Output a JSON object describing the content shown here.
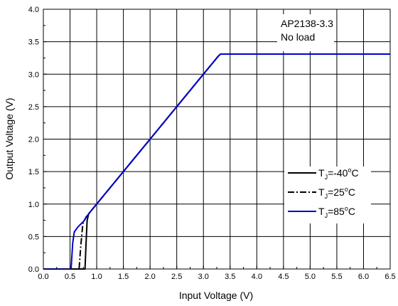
{
  "chart_data": {
    "type": "line",
    "xlabel": "Input Voltage (V)",
    "ylabel": "Output Voltage (V)",
    "xlim": [
      0.0,
      6.5
    ],
    "ylim": [
      0.0,
      4.0
    ],
    "x_ticks": [
      "0.0",
      "0.5",
      "1.0",
      "1.5",
      "2.0",
      "2.5",
      "3.0",
      "3.5",
      "4.0",
      "4.5",
      "5.0",
      "5.5",
      "6.0",
      "6.5"
    ],
    "y_ticks": [
      "0.0",
      "0.5",
      "1.0",
      "1.5",
      "2.0",
      "2.5",
      "3.0",
      "3.5",
      "4.0"
    ],
    "grid": true,
    "annotation": [
      "AP2138-3.3",
      "No load"
    ],
    "legend_position": "right",
    "series": [
      {
        "name": "T_J=-40°C",
        "legend": {
          "prefix": "T",
          "sub": "J",
          "middle": "=-40",
          "sup": "o",
          "suffix": "C"
        },
        "color": "#000000",
        "style": "solid",
        "x": [
          0.0,
          0.78,
          0.8,
          0.82,
          0.85,
          0.95,
          1.5,
          2.0,
          2.5,
          3.0,
          3.28,
          3.32,
          3.4,
          4.0,
          5.0,
          6.0,
          6.5
        ],
        "y": [
          0.0,
          0.0,
          0.4,
          0.75,
          0.85,
          0.95,
          1.5,
          2.0,
          2.5,
          3.0,
          3.28,
          3.31,
          3.31,
          3.31,
          3.31,
          3.31,
          3.31
        ]
      },
      {
        "name": "T_J=25°C",
        "legend": {
          "prefix": "T",
          "sub": "J",
          "middle": "=25",
          "sup": "o",
          "suffix": "C"
        },
        "color": "#000000",
        "style": "dashdot",
        "x": [
          0.0,
          0.67,
          0.7,
          0.74,
          0.8,
          0.95,
          1.5,
          2.0,
          2.5,
          3.0,
          3.28,
          3.32,
          3.4,
          4.0,
          5.0,
          6.0,
          6.5
        ],
        "y": [
          0.0,
          0.0,
          0.35,
          0.7,
          0.8,
          0.95,
          1.5,
          2.0,
          2.5,
          3.0,
          3.28,
          3.31,
          3.31,
          3.31,
          3.31,
          3.31,
          3.31
        ]
      },
      {
        "name": "T_J=85°C",
        "legend": {
          "prefix": "T",
          "sub": "J",
          "middle": "=85",
          "sup": "o",
          "suffix": "C"
        },
        "color": "#0000cc",
        "style": "solid",
        "x": [
          0.0,
          0.52,
          0.55,
          0.58,
          0.65,
          0.75,
          0.85,
          0.95,
          1.5,
          2.0,
          2.5,
          3.0,
          3.28,
          3.32,
          3.4,
          4.0,
          5.0,
          6.0,
          6.5
        ],
        "y": [
          0.0,
          0.0,
          0.4,
          0.57,
          0.65,
          0.73,
          0.85,
          0.95,
          1.5,
          2.0,
          2.5,
          3.0,
          3.28,
          3.31,
          3.31,
          3.31,
          3.31,
          3.31,
          3.31
        ]
      }
    ]
  }
}
